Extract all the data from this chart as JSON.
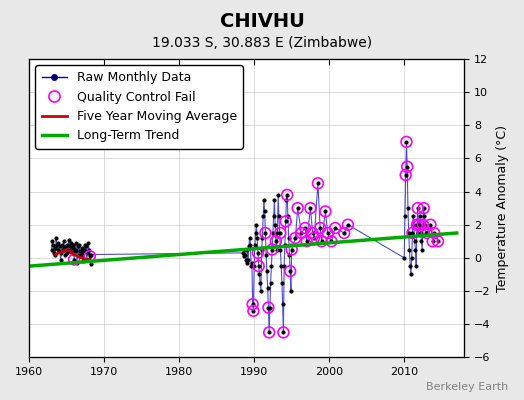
{
  "title": "CHIVHU",
  "subtitle": "19.033 S, 30.883 E (Zimbabwe)",
  "ylabel": "Temperature Anomaly (°C)",
  "credit": "Berkeley Earth",
  "xlim": [
    1960,
    2018
  ],
  "ylim": [
    -6,
    12
  ],
  "yticks": [
    -6,
    -4,
    -2,
    0,
    2,
    4,
    6,
    8,
    10,
    12
  ],
  "xticks": [
    1960,
    1970,
    1980,
    1990,
    2000,
    2010
  ],
  "bg_color": "#e8e8e8",
  "plot_bg_color": "#ffffff",
  "raw_data": {
    "x": [
      1963.0,
      1963.1,
      1963.2,
      1963.3,
      1963.4,
      1963.5,
      1963.6,
      1963.7,
      1963.8,
      1963.9,
      1964.0,
      1964.1,
      1964.2,
      1964.3,
      1964.4,
      1964.5,
      1964.6,
      1964.7,
      1964.8,
      1964.9,
      1965.0,
      1965.1,
      1965.2,
      1965.3,
      1965.4,
      1965.5,
      1965.6,
      1965.7,
      1965.8,
      1965.9,
      1966.0,
      1966.1,
      1966.2,
      1966.3,
      1966.4,
      1966.5,
      1966.6,
      1966.7,
      1966.8,
      1966.9,
      1967.0,
      1967.1,
      1967.2,
      1967.3,
      1967.4,
      1967.5,
      1967.6,
      1967.7,
      1967.8,
      1967.9,
      1968.0,
      1968.1,
      1968.2,
      1968.3,
      1988.5,
      1988.6,
      1988.7,
      1988.8,
      1988.9,
      1989.0,
      1989.1,
      1989.2,
      1989.3,
      1989.4,
      1989.5,
      1989.6,
      1989.7,
      1989.8,
      1989.9,
      1990.0,
      1990.1,
      1990.2,
      1990.3,
      1990.4,
      1990.5,
      1990.6,
      1990.7,
      1990.8,
      1990.9,
      1991.0,
      1991.1,
      1991.2,
      1991.3,
      1991.4,
      1991.5,
      1991.6,
      1991.7,
      1991.8,
      1991.9,
      1992.0,
      1992.1,
      1992.2,
      1992.3,
      1992.4,
      1992.5,
      1992.6,
      1992.7,
      1992.8,
      1992.9,
      1993.0,
      1993.1,
      1993.2,
      1993.3,
      1993.4,
      1993.5,
      1993.6,
      1993.7,
      1993.8,
      1993.9,
      1994.0,
      1994.1,
      1994.2,
      1994.3,
      1994.4,
      1994.5,
      1994.6,
      1994.7,
      1994.8,
      1994.9,
      1995.0,
      1995.5,
      1995.8,
      1996.3,
      1996.8,
      1997.0,
      1997.5,
      1997.8,
      1998.0,
      1998.5,
      1998.8,
      1999.0,
      1999.5,
      1999.8,
      2000.3,
      2000.8,
      2002.0,
      2002.5,
      2010.0,
      2010.1,
      2010.2,
      2010.3,
      2010.4,
      2010.5,
      2010.6,
      2010.7,
      2010.8,
      2010.9,
      2011.0,
      2011.1,
      2011.2,
      2011.3,
      2011.4,
      2011.5,
      2011.6,
      2011.7,
      2011.8,
      2011.9,
      2012.0,
      2012.1,
      2012.2,
      2012.3,
      2012.4,
      2012.5,
      2012.6,
      2012.7,
      2012.8,
      2012.9,
      2013.0,
      2013.5,
      2013.8,
      2014.0,
      2014.5
    ],
    "y": [
      0.5,
      1.0,
      0.8,
      0.3,
      0.6,
      0.2,
      1.2,
      0.8,
      0.5,
      0.9,
      0.4,
      0.7,
      -0.1,
      0.3,
      0.8,
      0.5,
      1.0,
      0.6,
      0.2,
      0.7,
      0.3,
      0.8,
      0.5,
      1.1,
      0.7,
      0.4,
      0.9,
      0.3,
      0.6,
      0.8,
      -0.1,
      0.4,
      0.9,
      0.5,
      -0.3,
      0.7,
      0.2,
      0.8,
      0.4,
      0.1,
      0.6,
      0.3,
      -0.2,
      0.5,
      0.8,
      0.4,
      0.7,
      -0.1,
      0.3,
      0.9,
      0.5,
      0.1,
      -0.4,
      0.2,
      0.3,
      0.1,
      0.5,
      0.2,
      -0.1,
      -0.3,
      0.5,
      -0.1,
      0.7,
      1.2,
      0.8,
      -0.5,
      -0.3,
      -2.8,
      -3.2,
      -0.5,
      0.8,
      1.5,
      2.0,
      1.2,
      0.3,
      -0.5,
      -1.0,
      -1.5,
      -2.0,
      0.5,
      1.2,
      2.5,
      3.5,
      2.8,
      1.5,
      0.2,
      -0.8,
      -1.8,
      -3.0,
      -4.5,
      -3.0,
      -1.5,
      -0.5,
      0.5,
      1.5,
      2.5,
      3.5,
      2.0,
      1.0,
      0.5,
      1.5,
      3.8,
      2.5,
      1.5,
      0.5,
      -0.5,
      -1.5,
      -2.8,
      -4.5,
      -0.5,
      0.8,
      2.2,
      3.5,
      3.8,
      2.5,
      1.2,
      0.2,
      -0.8,
      -2.0,
      0.5,
      1.2,
      3.0,
      1.5,
      1.8,
      1.0,
      3.0,
      1.5,
      1.2,
      4.5,
      1.8,
      1.0,
      2.8,
      1.5,
      1.0,
      1.8,
      1.5,
      2.0,
      0.0,
      2.5,
      5.0,
      7.0,
      5.5,
      3.0,
      1.5,
      0.5,
      -0.5,
      -1.0,
      0.0,
      1.5,
      2.5,
      2.0,
      1.0,
      0.5,
      -0.5,
      2.0,
      3.0,
      1.5,
      2.0,
      2.5,
      1.5,
      1.0,
      0.5,
      2.0,
      3.0,
      2.5,
      2.0,
      1.5,
      1.5,
      2.0,
      1.0,
      1.5,
      1.0
    ]
  },
  "qc_fail_x": [
    1966.0,
    1968.1,
    1989.8,
    1989.9,
    1990.5,
    1990.6,
    1991.5,
    1991.9,
    1992.0,
    1992.4,
    1992.9,
    1993.5,
    1993.9,
    1994.2,
    1994.4,
    1994.8,
    1995.0,
    1995.5,
    1995.8,
    1996.3,
    1996.8,
    1997.0,
    1997.5,
    1997.8,
    1998.0,
    1998.5,
    1998.8,
    1999.0,
    1999.5,
    1999.8,
    2000.3,
    2000.8,
    2002.0,
    2002.5,
    2010.2,
    2010.3,
    2010.4,
    2011.1,
    2011.7,
    2011.8,
    2012.0,
    2012.5,
    2012.6,
    2013.0,
    2013.5,
    2013.8,
    2014.0,
    2014.5
  ],
  "qc_fail_y": [
    -0.1,
    0.1,
    -2.8,
    -3.2,
    0.3,
    -0.5,
    1.5,
    -3.0,
    -4.5,
    0.5,
    1.0,
    1.5,
    -4.5,
    2.2,
    3.8,
    -0.8,
    0.5,
    1.2,
    3.0,
    1.5,
    1.8,
    1.0,
    3.0,
    1.5,
    1.2,
    4.5,
    1.8,
    1.0,
    2.8,
    1.5,
    1.0,
    1.8,
    1.5,
    2.0,
    5.0,
    7.0,
    5.5,
    1.5,
    2.0,
    3.0,
    2.0,
    2.0,
    3.0,
    1.5,
    2.0,
    1.0,
    1.5,
    1.0
  ],
  "moving_avg_x": [
    1963.5,
    1964.0,
    1964.5,
    1965.0,
    1965.5,
    1966.0,
    1966.5,
    1967.0,
    1967.5,
    1968.0
  ],
  "moving_avg_y": [
    0.2,
    0.3,
    0.4,
    0.5,
    0.4,
    0.2,
    0.1,
    0.0,
    -0.1,
    -0.1
  ],
  "trend_x": [
    1960,
    2017
  ],
  "trend_y": [
    -0.5,
    1.5
  ],
  "raw_color": "#0000cc",
  "raw_marker_color": "#000000",
  "qc_color": "#ff00ff",
  "ma_color": "#cc0000",
  "trend_color": "#00aa00",
  "legend_fontsize": 9,
  "title_fontsize": 14,
  "subtitle_fontsize": 10
}
